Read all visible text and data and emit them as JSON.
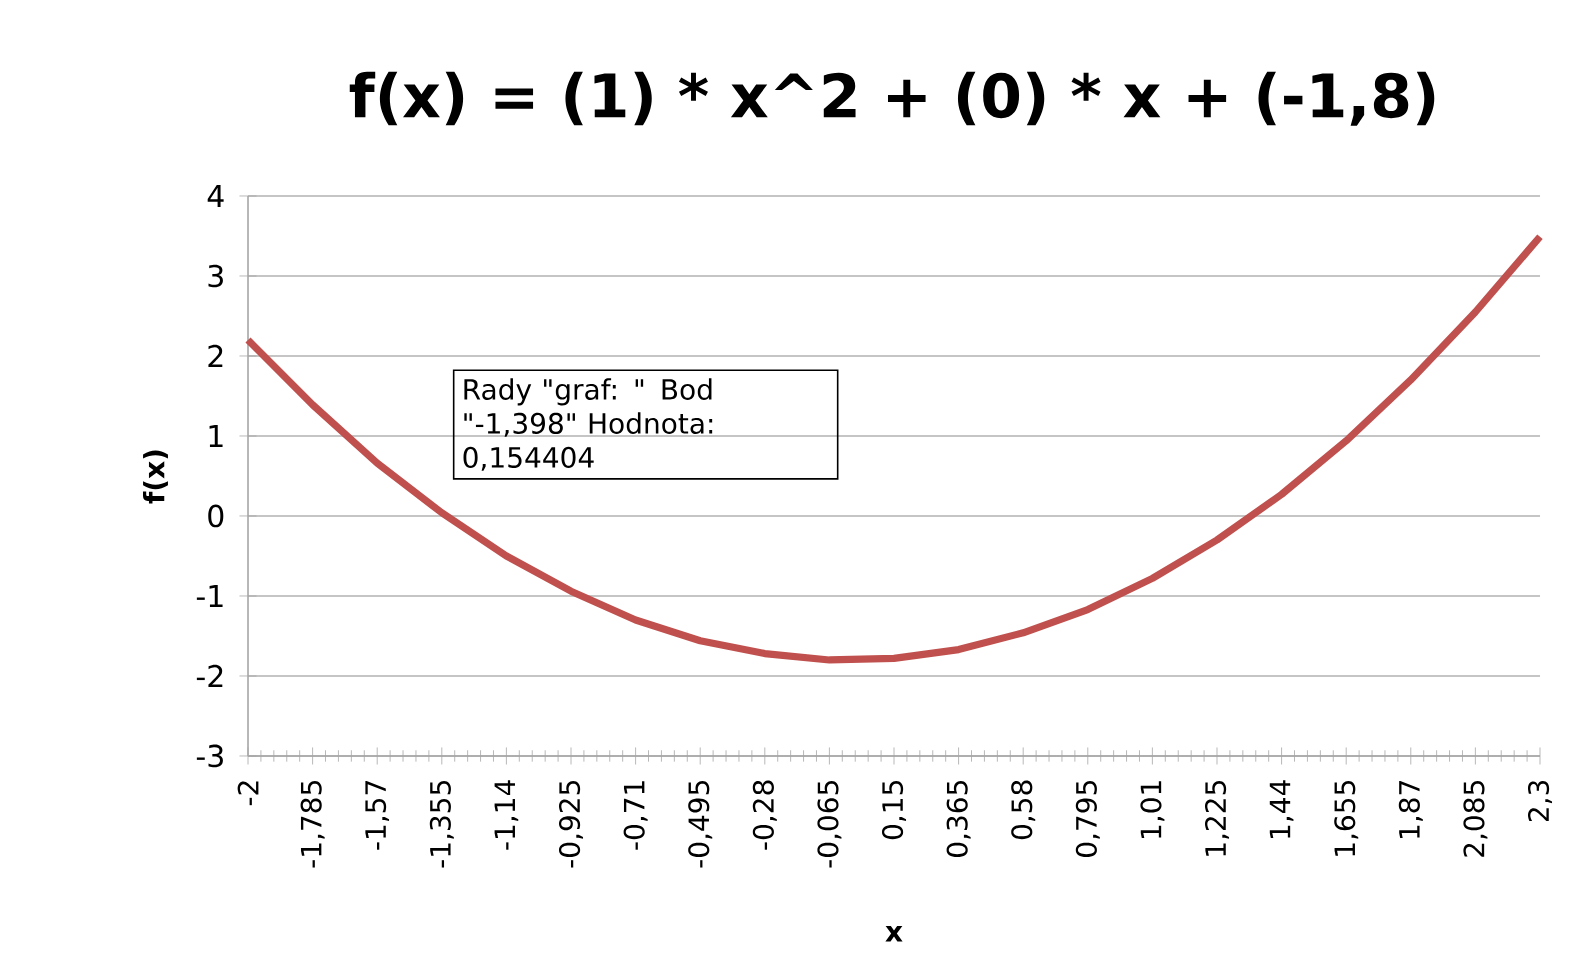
{
  "chart_data": {
    "type": "line",
    "title": "f(x) = (1) * x^2 + (0) * x + (-1,8)",
    "xlabel": "x",
    "ylabel": "f(x)",
    "x": [
      -2,
      -1.785,
      -1.57,
      -1.355,
      -1.14,
      -0.925,
      -0.71,
      -0.495,
      -0.28,
      -0.065,
      0.15,
      0.365,
      0.58,
      0.795,
      1.01,
      1.225,
      1.44,
      1.655,
      1.87,
      2.085,
      2.3
    ],
    "series": [
      {
        "color": "#c0504d",
        "values": [
          2.2,
          1.39,
          0.66,
          0.04,
          -0.5,
          -0.94,
          -1.3,
          -1.56,
          -1.72,
          -1.8,
          -1.78,
          -1.67,
          -1.46,
          -1.17,
          -0.78,
          -0.3,
          0.27,
          0.94,
          1.7,
          2.55,
          3.49
        ]
      }
    ],
    "xlim": [
      -2,
      2.3
    ],
    "ylim": [
      -3,
      4
    ],
    "xticks": [
      -2,
      {
        "value": -1.785,
        "label": "-1,785"
      },
      {
        "value": -1.57,
        "label": "-1,57"
      },
      {
        "value": -1.355,
        "label": "-1,355"
      },
      {
        "value": -1.14,
        "label": "-1,14"
      },
      {
        "value": -0.925,
        "label": "-0,925"
      },
      {
        "value": -0.71,
        "label": "-0,71"
      },
      {
        "value": -0.495,
        "label": "-0,495"
      },
      {
        "value": -0.28,
        "label": "-0,28"
      },
      {
        "value": -0.065,
        "label": "-0,065"
      },
      {
        "value": 0.15,
        "label": "0,15"
      },
      {
        "value": 0.365,
        "label": "0,365"
      },
      {
        "value": 0.58,
        "label": "0,58"
      },
      {
        "value": 0.795,
        "label": "0,795"
      },
      {
        "value": 1.01,
        "label": "1,01"
      },
      {
        "value": 1.225,
        "label": "1,225"
      },
      {
        "value": 1.44,
        "label": "1,44"
      },
      {
        "value": 1.655,
        "label": "1,655"
      },
      {
        "value": 1.87,
        "label": "1,87"
      },
      {
        "value": 2.085,
        "label": "2,085"
      },
      {
        "value": 2.3,
        "label": "2,3"
      }
    ],
    "yticks": [
      -3,
      -2,
      -1,
      0,
      1,
      2,
      3,
      4
    ],
    "grid": "y",
    "annotations": [
      {
        "text": "Rady \"graf: \" Bod \"-1,398\" Hodnota: 0,154404",
        "x": -1.398,
        "y": 0.154404
      }
    ]
  }
}
